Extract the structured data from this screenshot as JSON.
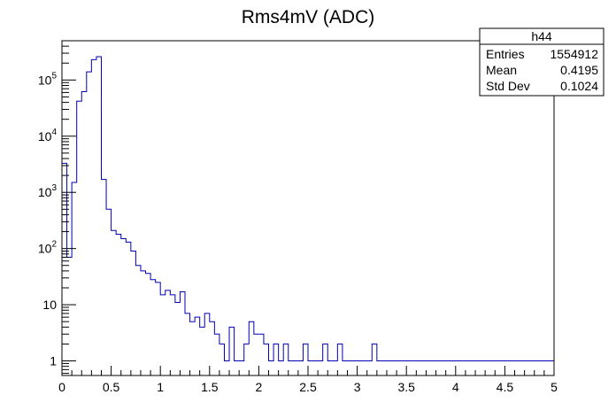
{
  "chart_data": {
    "type": "histogram",
    "title": "Rms4mV (ADC)",
    "xlabel": "",
    "ylabel": "",
    "xlim": [
      0,
      5
    ],
    "ylim": [
      0.55,
      500000
    ],
    "y_scale": "log",
    "grid": false,
    "line_color": "#0000b4",
    "bin_width": 0.05,
    "bin_start": 0,
    "values": [
      3300,
      70,
      1500,
      42000,
      62000,
      140000,
      230000,
      260000,
      1700,
      500,
      210,
      180,
      150,
      130,
      90,
      50,
      40,
      36,
      28,
      25,
      15,
      18,
      15,
      11,
      17,
      7,
      5,
      6,
      4,
      7,
      5,
      3,
      2,
      1,
      4,
      1,
      1,
      2,
      5,
      3,
      3,
      2,
      1,
      2,
      1,
      2,
      1,
      1,
      1,
      2,
      1,
      1,
      1,
      2,
      1,
      1,
      2,
      1,
      1,
      1,
      1,
      1,
      1,
      2,
      1,
      1,
      1,
      1,
      1,
      1,
      1,
      1,
      1,
      1,
      1,
      1,
      1,
      1,
      1,
      1,
      1,
      1,
      1,
      1,
      1,
      1,
      1,
      1,
      1,
      1,
      1,
      1,
      1,
      1,
      1,
      1,
      1,
      1,
      1,
      1
    ],
    "x_ticks": [
      "0",
      "0.5",
      "1",
      "1.5",
      "2",
      "2.5",
      "3",
      "3.5",
      "4",
      "4.5",
      "5"
    ],
    "y_ticks": [
      {
        "value": 1,
        "base": "1",
        "exp": ""
      },
      {
        "value": 10,
        "base": "10",
        "exp": ""
      },
      {
        "value": 100,
        "base": "10",
        "exp": "2"
      },
      {
        "value": 1000,
        "base": "10",
        "exp": "3"
      },
      {
        "value": 10000,
        "base": "10",
        "exp": "4"
      },
      {
        "value": 100000,
        "base": "10",
        "exp": "5"
      }
    ],
    "stats_box": {
      "name": "h44",
      "rows": [
        {
          "label": "Entries",
          "value": "1554912"
        },
        {
          "label": "Mean",
          "value": "0.4195"
        },
        {
          "label": "Std Dev",
          "value": "0.1024"
        }
      ]
    }
  }
}
